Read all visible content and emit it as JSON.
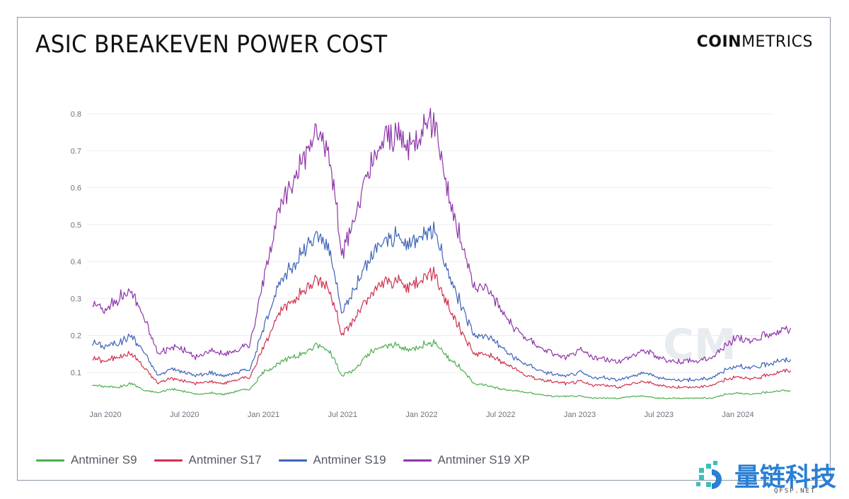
{
  "header": {
    "title": "ASIC BREAKEVEN POWER COST",
    "brand_bold": "COIN",
    "brand_light": "METRICS"
  },
  "watermark": {
    "brand": "量链科技",
    "url": "QFSP.NET",
    "mark": "CM"
  },
  "chart_data": {
    "type": "line",
    "title": "ASIC BREAKEVEN POWER COST",
    "xlabel": "",
    "ylabel": "",
    "ylim": [
      0.0,
      0.85
    ],
    "y_ticks": [
      0.1,
      0.2,
      0.3,
      0.4,
      0.5,
      0.6,
      0.7,
      0.8
    ],
    "y_tick_labels": [
      "0.1",
      "0.2",
      "0.3",
      "0.4",
      "0.5",
      "0.6",
      "0.7",
      "0.8"
    ],
    "x_ticks": [
      "Jan 2020",
      "Jul 2020",
      "Jan 2021",
      "Jul 2021",
      "Jan 2022",
      "Jul 2022",
      "Jan 2023",
      "Jul 2023",
      "Jan 2024"
    ],
    "x_start": "Dec 2019",
    "x_end": "May 2024",
    "x_months_from_jan2020": [
      -1,
      0,
      1,
      2,
      3,
      4,
      5,
      6,
      7,
      8,
      9,
      10,
      11,
      12,
      13,
      14,
      15,
      16,
      17,
      18,
      19,
      20,
      21,
      22,
      23,
      24,
      25,
      26,
      27,
      28,
      29,
      30,
      31,
      32,
      33,
      34,
      35,
      36,
      37,
      38,
      39,
      40,
      41,
      42,
      43,
      44,
      45,
      46,
      47,
      48,
      49,
      50,
      51,
      52
    ],
    "grid": true,
    "legend_position": "bottom",
    "series": [
      {
        "name": "Antminer S9",
        "color": "#4caf50",
        "values": [
          0.065,
          0.062,
          0.06,
          0.07,
          0.05,
          0.045,
          0.055,
          0.048,
          0.04,
          0.045,
          0.04,
          0.05,
          0.055,
          0.1,
          0.12,
          0.14,
          0.15,
          0.175,
          0.16,
          0.09,
          0.11,
          0.15,
          0.17,
          0.175,
          0.16,
          0.175,
          0.18,
          0.14,
          0.11,
          0.07,
          0.065,
          0.055,
          0.05,
          0.045,
          0.04,
          0.035,
          0.035,
          0.035,
          0.03,
          0.03,
          0.03,
          0.035,
          0.035,
          0.03,
          0.03,
          0.03,
          0.03,
          0.03,
          0.04,
          0.045,
          0.04,
          0.045,
          0.05,
          0.05
        ]
      },
      {
        "name": "Antminer S17",
        "color": "#d0304f",
        "values": [
          0.14,
          0.13,
          0.145,
          0.15,
          0.11,
          0.07,
          0.085,
          0.075,
          0.07,
          0.075,
          0.07,
          0.08,
          0.09,
          0.17,
          0.25,
          0.29,
          0.32,
          0.35,
          0.33,
          0.2,
          0.25,
          0.3,
          0.34,
          0.35,
          0.33,
          0.36,
          0.37,
          0.28,
          0.21,
          0.15,
          0.15,
          0.13,
          0.11,
          0.09,
          0.08,
          0.075,
          0.07,
          0.075,
          0.065,
          0.065,
          0.06,
          0.07,
          0.075,
          0.065,
          0.06,
          0.06,
          0.06,
          0.065,
          0.08,
          0.09,
          0.08,
          0.09,
          0.1,
          0.105
        ]
      },
      {
        "name": "Antminer S19",
        "color": "#3d63b8",
        "values": [
          0.18,
          0.17,
          0.18,
          0.2,
          0.15,
          0.09,
          0.11,
          0.1,
          0.09,
          0.1,
          0.09,
          0.1,
          0.11,
          0.22,
          0.33,
          0.38,
          0.43,
          0.47,
          0.44,
          0.26,
          0.33,
          0.4,
          0.45,
          0.47,
          0.44,
          0.48,
          0.49,
          0.37,
          0.28,
          0.2,
          0.2,
          0.17,
          0.14,
          0.12,
          0.105,
          0.095,
          0.09,
          0.1,
          0.085,
          0.085,
          0.08,
          0.09,
          0.1,
          0.085,
          0.08,
          0.08,
          0.08,
          0.085,
          0.105,
          0.12,
          0.11,
          0.12,
          0.13,
          0.135
        ]
      },
      {
        "name": "Antminer S19 XP",
        "color": "#8e35a8",
        "values": [
          0.29,
          0.27,
          0.3,
          0.32,
          0.24,
          0.15,
          0.17,
          0.16,
          0.14,
          0.16,
          0.15,
          0.16,
          0.18,
          0.35,
          0.52,
          0.6,
          0.68,
          0.75,
          0.7,
          0.42,
          0.53,
          0.64,
          0.72,
          0.75,
          0.7,
          0.77,
          0.78,
          0.59,
          0.45,
          0.33,
          0.33,
          0.27,
          0.22,
          0.19,
          0.17,
          0.15,
          0.14,
          0.16,
          0.14,
          0.135,
          0.13,
          0.145,
          0.16,
          0.14,
          0.13,
          0.13,
          0.13,
          0.14,
          0.17,
          0.2,
          0.18,
          0.2,
          0.21,
          0.22
        ]
      }
    ]
  }
}
